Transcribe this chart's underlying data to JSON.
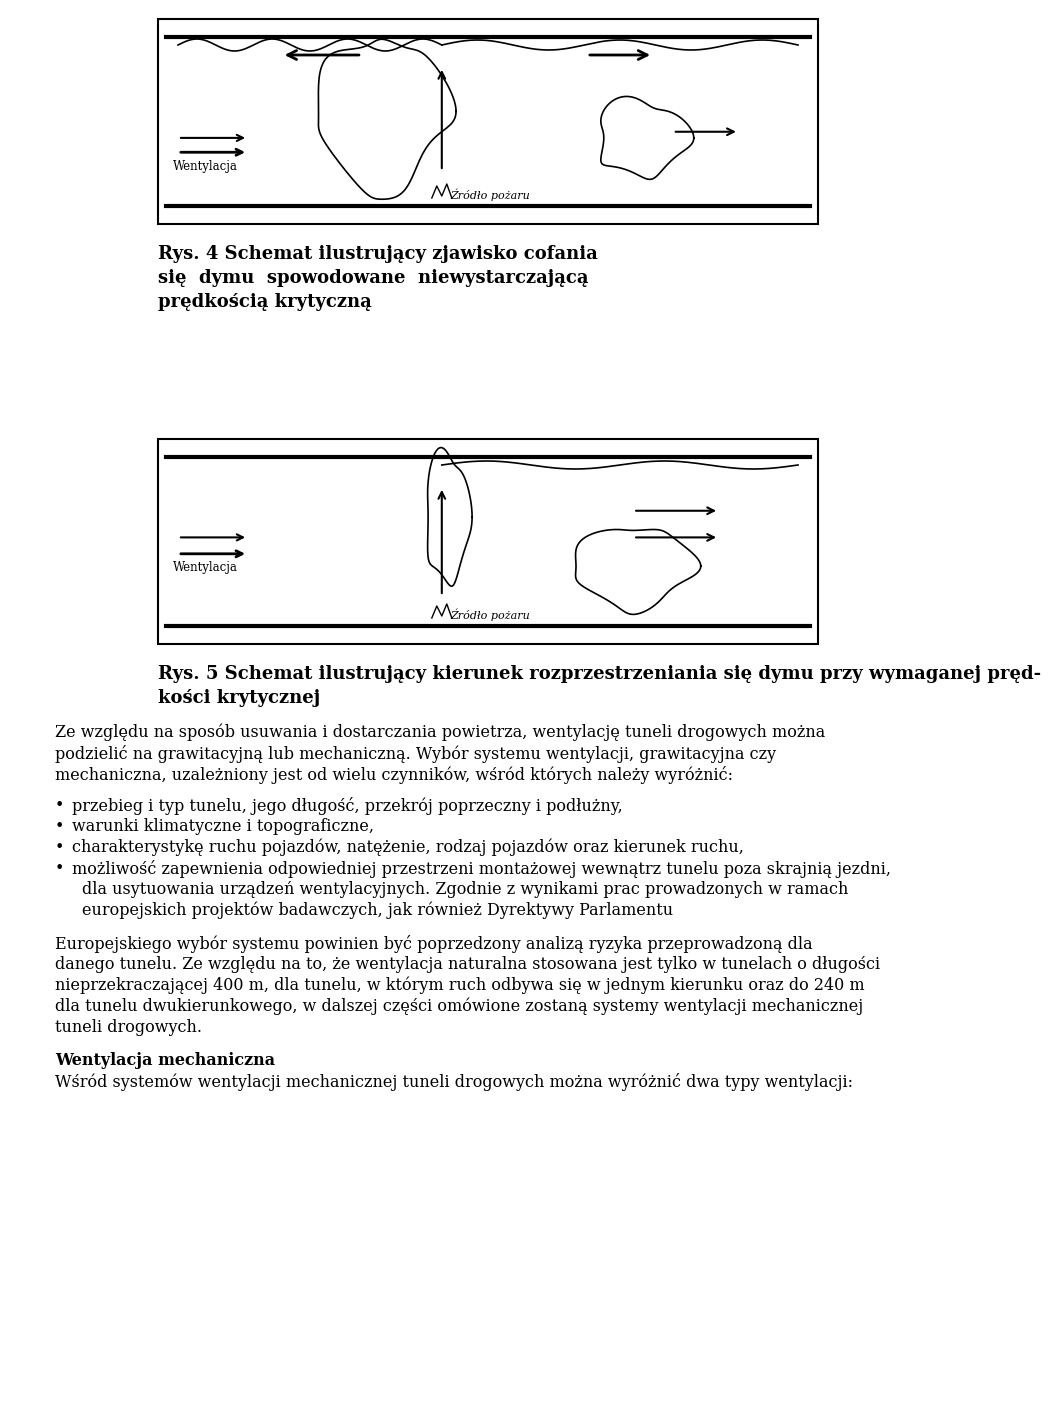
{
  "fig_width": 9.6,
  "fig_height": 13.86,
  "bg_color": "#ffffff",
  "wentylacja_label": "Wentylacja",
  "zrodlo_label": "Źródło pożaru",
  "cap1_line1": "Rys. 4 Schemat ilustrujący zjawisko cofania",
  "cap1_line2": "się  dymu  spowodowane  niewystarczającą",
  "cap1_line3": "prędkością krytyczną",
  "cap2_line1": "Rys. 5 Schemat ilustrujący kierunek rozprzestrzeniania się dymu przy wymaganej pręd-",
  "cap2_line2": "kości krytycznej",
  "p1_l1": "Ze względu na sposób usuwania i dostarczania powietrza, wentylację tuneli drogowych można",
  "p1_l2": "podzielić na grawitacyjną lub mechaniczną. Wybór systemu wentylacji, grawitacyjna czy",
  "p1_l3": "mechaniczna, uzależniony jest od wielu czynników, wśród których należy wyróżnić:",
  "b1": "przebieg i typ tunelu, jego długość, przekrój poprzeczny i podłużny,",
  "b2": "warunki klimatyczne i topograficzne,",
  "b3": "charakterystykę ruchu pojazdów, natężenie, rodzaj pojazdów oraz kierunek ruchu,",
  "b4a": "możliwość zapewnienia odpowiedniej przestrzeni montażowej wewnątrz tunelu poza skrajnią jezdni,",
  "b4b": "dla usytuowania urządzeń wentylacyjnych. Zgodnie z wynikami prac prowadzonych w ramach",
  "b4c": "europejskich projektów badawczych, jak również Dyrektywy Parlamentu",
  "p2_l1": "Europejskiego wybór systemu powinien być poprzedzony analizą ryzyka przeprowadzoną dla",
  "p2_l2": "danego tunelu. Ze względu na to, że wentylacja naturalna stosowana jest tylko w tunelach o długości",
  "p2_l3": "nieprzekraczającej 400 m, dla tunelu, w którym ruch odbywa się w jednym kierunku oraz do 240 m",
  "p2_l4": "dla tunelu dwukierunkowego, w dalszej części omówione zostaną systemy wentylacji mechanicznej",
  "p2_l5": "tuneli drogowych.",
  "heading": "Wentylacja mechaniczna",
  "last_line": "Wśród systemów wentylacji mechanicznej tuneli drogowych można wyróżnić dwa typy wentylacji:"
}
